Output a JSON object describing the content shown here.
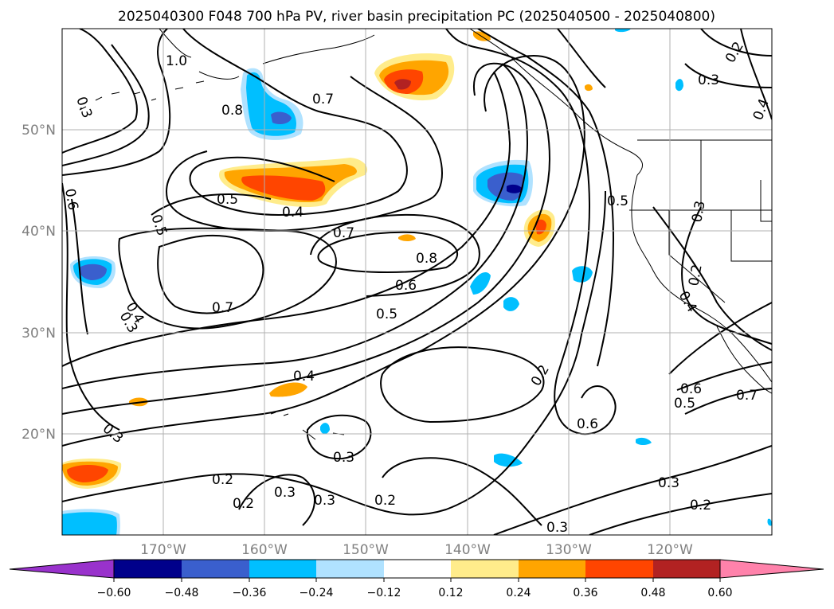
{
  "title": "2025040300 F048 700 hPa PV, river basin precipitation PC (2025040500 - 2025040800)",
  "lat_labels": [
    "50°N",
    "40°N",
    "30°N",
    "20°N"
  ],
  "lon_labels": [
    "170°W",
    "160°W",
    "150°W",
    "140°W",
    "130°W",
    "120°W"
  ],
  "contour_labels": [
    "1.0",
    "0.8",
    "0.7",
    "0.5",
    "0.4",
    "0.5",
    "0.6",
    "0.4",
    "0.3",
    "0.7",
    "0.7",
    "0.8",
    "0.6",
    "0.5",
    "0.4",
    "0.3",
    "0.2",
    "0.3",
    "0.3",
    "0.2",
    "0.3",
    "0.2",
    "0.3",
    "0.2",
    "0.6",
    "0.5",
    "0.6",
    "0.7",
    "0.3",
    "0.2",
    "0.3",
    "0.2",
    "0.4",
    "0.3",
    "0.2",
    "0.4",
    "0.5",
    "0.3"
  ],
  "colorbar": {
    "ticks": [
      "−0.60",
      "−0.48",
      "−0.36",
      "−0.24",
      "−0.12",
      "0.12",
      "0.24",
      "0.36",
      "0.48",
      "0.60"
    ],
    "colors": [
      "#9932cc",
      "#00008b",
      "#3a5fcd",
      "#00bfff",
      "#b0e2ff",
      "#ffffff",
      "#ffec8b",
      "#ffa500",
      "#ff4500",
      "#b22222",
      "#ff82ab"
    ]
  },
  "colors": {
    "background": "#ffffff",
    "grid": "#b0b0b0",
    "contour": "#000000",
    "axis_labels": "#808080"
  }
}
